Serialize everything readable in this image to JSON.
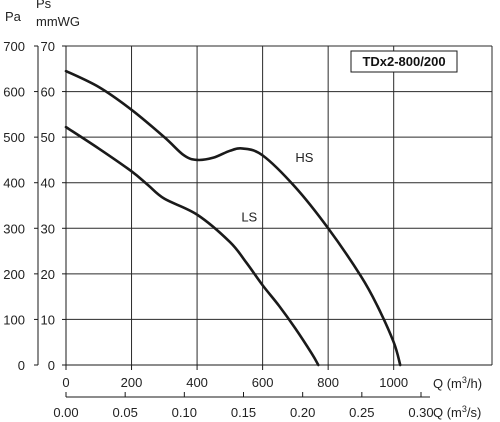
{
  "chart_data": {
    "type": "line",
    "title": "TDx2-800/200",
    "y_axes": [
      {
        "label": "Pa",
        "ticks": [
          "0",
          "100",
          "200",
          "300",
          "400",
          "500",
          "600",
          "700"
        ],
        "range": [
          0,
          700
        ]
      },
      {
        "label_top": "Ps",
        "label_unit": "mmWG",
        "ticks": [
          "0",
          "10",
          "20",
          "30",
          "40",
          "50",
          "60",
          "70"
        ],
        "range": [
          0,
          70
        ]
      }
    ],
    "x_axes": [
      {
        "label_prefix": "Q (m",
        "label_sup": "3",
        "label_suffix": "/h)",
        "ticks": [
          "0",
          "200",
          "400",
          "600",
          "800",
          "1000"
        ],
        "range": [
          0,
          1300
        ]
      },
      {
        "label_prefix": "Q (m",
        "label_sup": "3",
        "label_suffix": "/s)",
        "ticks": [
          "0.00",
          "0.05",
          "0.10",
          "0.15",
          "0.20",
          "0.25",
          "0.30"
        ],
        "range": [
          0,
          0.36
        ]
      }
    ],
    "grid": true,
    "series": [
      {
        "name": "HS",
        "x": [
          0,
          100,
          200,
          300,
          360,
          400,
          450,
          500,
          540,
          600,
          700,
          800,
          900,
          950,
          1000,
          1020
        ],
        "y": [
          645,
          610,
          560,
          500,
          460,
          450,
          455,
          470,
          475,
          460,
          390,
          300,
          195,
          130,
          50,
          0
        ]
      },
      {
        "name": "LS",
        "x": [
          0,
          100,
          200,
          250,
          300,
          400,
          500,
          550,
          600,
          650,
          700,
          750,
          770
        ],
        "y": [
          522,
          475,
          425,
          395,
          365,
          330,
          270,
          225,
          175,
          130,
          80,
          25,
          0
        ]
      }
    ]
  }
}
